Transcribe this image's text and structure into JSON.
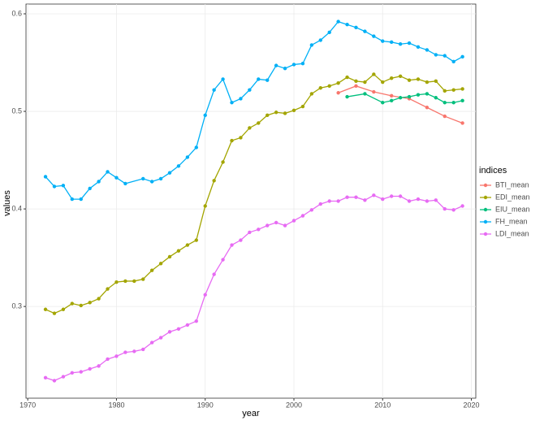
{
  "chart_data": {
    "type": "line",
    "x_label": "year",
    "y_label": "values",
    "legend_title": "indices",
    "xlim": [
      1969.8,
      2020.5
    ],
    "xticks": [
      1970,
      1980,
      1990,
      2000,
      2010,
      2020
    ],
    "ylim": [
      0.206,
      0.61
    ],
    "yticks": [
      0.3,
      0.4,
      0.5,
      0.6
    ],
    "grid": true,
    "legend": "right",
    "series": [
      {
        "name": "BTI_mean",
        "color": "#F8766D",
        "x": [
          2005,
          2007,
          2009,
          2011,
          2013,
          2015,
          2017,
          2019
        ],
        "values": [
          0.519,
          0.526,
          0.52,
          0.516,
          0.513,
          0.504,
          0.495,
          0.488
        ]
      },
      {
        "name": "EDI_mean",
        "color": "#A3A500",
        "x": [
          1972,
          1973,
          1974,
          1975,
          1976,
          1977,
          1978,
          1979,
          1980,
          1981,
          1982,
          1983,
          1984,
          1985,
          1986,
          1987,
          1988,
          1989,
          1990,
          1991,
          1992,
          1993,
          1994,
          1995,
          1996,
          1997,
          1998,
          1999,
          2000,
          2001,
          2002,
          2003,
          2004,
          2005,
          2006,
          2007,
          2008,
          2009,
          2010,
          2011,
          2012,
          2013,
          2014,
          2015,
          2016,
          2017,
          2018,
          2019
        ],
        "values": [
          0.297,
          0.293,
          0.297,
          0.303,
          0.301,
          0.304,
          0.308,
          0.318,
          0.325,
          0.326,
          0.326,
          0.328,
          0.337,
          0.344,
          0.351,
          0.357,
          0.363,
          0.368,
          0.403,
          0.429,
          0.448,
          0.47,
          0.473,
          0.483,
          0.488,
          0.496,
          0.499,
          0.498,
          0.501,
          0.505,
          0.518,
          0.524,
          0.526,
          0.529,
          0.535,
          0.531,
          0.53,
          0.538,
          0.53,
          0.534,
          0.536,
          0.532,
          0.533,
          0.53,
          0.531,
          0.521,
          0.522,
          0.523
        ]
      },
      {
        "name": "EIU_mean",
        "color": "#00BF7D",
        "x": [
          2006,
          2008,
          2010,
          2011,
          2012,
          2013,
          2014,
          2015,
          2016,
          2017,
          2018,
          2019
        ],
        "values": [
          0.515,
          0.518,
          0.509,
          0.511,
          0.514,
          0.515,
          0.517,
          0.518,
          0.514,
          0.509,
          0.509,
          0.511
        ]
      },
      {
        "name": "FH_mean",
        "color": "#00B0F6",
        "x": [
          1972,
          1973,
          1974,
          1975,
          1976,
          1977,
          1978,
          1979,
          1980,
          1981,
          1983,
          1984,
          1985,
          1986,
          1987,
          1988,
          1989,
          1990,
          1991,
          1992,
          1993,
          1994,
          1995,
          1996,
          1997,
          1998,
          1999,
          2000,
          2001,
          2002,
          2003,
          2004,
          2005,
          2006,
          2007,
          2008,
          2009,
          2010,
          2011,
          2012,
          2013,
          2014,
          2015,
          2016,
          2017,
          2018,
          2019
        ],
        "values": [
          0.433,
          0.423,
          0.424,
          0.41,
          0.41,
          0.421,
          0.428,
          0.438,
          0.432,
          0.426,
          0.431,
          0.428,
          0.431,
          0.437,
          0.444,
          0.453,
          0.463,
          0.496,
          0.522,
          0.533,
          0.509,
          0.513,
          0.522,
          0.533,
          0.532,
          0.547,
          0.544,
          0.548,
          0.549,
          0.568,
          0.573,
          0.581,
          0.592,
          0.589,
          0.586,
          0.582,
          0.577,
          0.572,
          0.571,
          0.569,
          0.57,
          0.566,
          0.563,
          0.558,
          0.557,
          0.551,
          0.556
        ]
      },
      {
        "name": "LDI_mean",
        "color": "#E76BF3",
        "x": [
          1972,
          1973,
          1974,
          1975,
          1976,
          1977,
          1978,
          1979,
          1980,
          1981,
          1982,
          1983,
          1984,
          1985,
          1986,
          1987,
          1988,
          1989,
          1990,
          1991,
          1992,
          1993,
          1994,
          1995,
          1996,
          1997,
          1998,
          1999,
          2000,
          2001,
          2002,
          2003,
          2004,
          2005,
          2006,
          2007,
          2008,
          2009,
          2010,
          2011,
          2012,
          2013,
          2014,
          2015,
          2016,
          2017,
          2018,
          2019
        ],
        "values": [
          0.227,
          0.224,
          0.228,
          0.232,
          0.233,
          0.236,
          0.239,
          0.246,
          0.249,
          0.253,
          0.254,
          0.256,
          0.263,
          0.268,
          0.274,
          0.277,
          0.281,
          0.285,
          0.312,
          0.333,
          0.348,
          0.363,
          0.368,
          0.376,
          0.379,
          0.383,
          0.386,
          0.383,
          0.388,
          0.393,
          0.399,
          0.405,
          0.408,
          0.408,
          0.412,
          0.412,
          0.409,
          0.414,
          0.41,
          0.413,
          0.413,
          0.408,
          0.41,
          0.408,
          0.409,
          0.4,
          0.399,
          0.403
        ]
      }
    ]
  }
}
